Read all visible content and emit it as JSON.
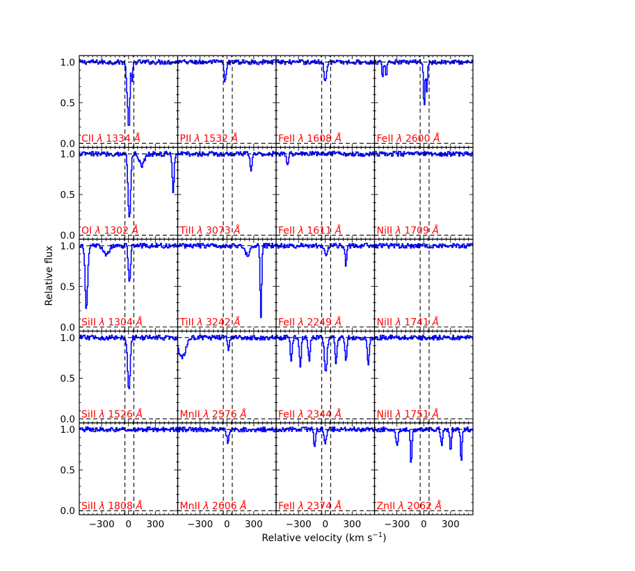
{
  "chart_data": {
    "type": "line",
    "ylabel": "Relative flux",
    "xlabel": "Relative velocity (km s$^{-1}$)",
    "xlabel_prefix": "Relative velocity (km s",
    "xlabel_sup": "−1",
    "xlabel_suffix": ")",
    "xlim": [
      -550,
      550
    ],
    "ylim": [
      -0.05,
      1.08
    ],
    "xticks": [
      -300,
      0,
      300
    ],
    "xtick_labels": [
      "−300",
      "0",
      "300"
    ],
    "yticks": [
      0.0,
      0.5,
      1.0
    ],
    "ytick_labels": [
      "0.0",
      "0.5",
      "1.0"
    ],
    "velocity_window": [
      -40,
      60
    ],
    "grid": false,
    "colors": {
      "spectrum": "#0000ff",
      "label": "#ff0000",
      "marker": "#000000"
    },
    "panel_grid": {
      "columns": 4,
      "rows": 5
    },
    "panels": [
      {
        "ion": "CII",
        "wavelength": "1334",
        "absorptions": [
          {
            "v": 5,
            "depth": 0.85,
            "width": 10,
            "style": "solid"
          },
          {
            "v": -15,
            "depth": 0.35,
            "width": 10,
            "style": "solid"
          },
          {
            "v": 40,
            "depth": 0.25,
            "width": 8,
            "style": "solid"
          }
        ]
      },
      {
        "ion": "PII",
        "wavelength": "1532",
        "absorptions": [
          {
            "v": -20,
            "depth": 0.25,
            "width": 12,
            "style": "solid"
          }
        ]
      },
      {
        "ion": "FeII",
        "wavelength": "1608",
        "absorptions": [
          {
            "v": 0,
            "depth": 0.25,
            "width": 12,
            "style": "solid"
          }
        ]
      },
      {
        "ion": "FeII",
        "wavelength": "2600",
        "absorptions": [
          {
            "v": 5,
            "depth": 0.55,
            "width": 8,
            "style": "solid"
          },
          {
            "v": 35,
            "depth": 0.35,
            "width": 8,
            "style": "solid"
          },
          {
            "v": -460,
            "depth": 0.2,
            "width": 8,
            "style": "solid"
          },
          {
            "v": -420,
            "depth": 0.18,
            "width": 8,
            "style": "solid"
          }
        ]
      },
      {
        "ion": "OI",
        "wavelength": "1302",
        "absorptions": [
          {
            "v": 10,
            "depth": 0.8,
            "width": 14,
            "style": "solid"
          },
          {
            "v": 150,
            "depth": 0.15,
            "width": 25,
            "style": "dotted"
          },
          {
            "v": 500,
            "depth": 0.45,
            "width": 10,
            "style": "dotted"
          }
        ]
      },
      {
        "ion": "TiII",
        "wavelength": "3073",
        "absorptions": [
          {
            "v": 270,
            "depth": 0.2,
            "width": 10,
            "style": "solid"
          }
        ]
      },
      {
        "ion": "FeII",
        "wavelength": "1611",
        "absorptions": [
          {
            "v": -420,
            "depth": 0.15,
            "width": 10,
            "style": "solid"
          }
        ]
      },
      {
        "ion": "NiII",
        "wavelength": "1709",
        "absorptions": []
      },
      {
        "ion": "SiII",
        "wavelength": "1304",
        "absorptions": [
          {
            "v": 10,
            "depth": 0.45,
            "width": 12,
            "style": "solid"
          },
          {
            "v": -470,
            "depth": 0.8,
            "width": 14,
            "style": "dotted"
          },
          {
            "v": -250,
            "depth": 0.12,
            "width": 30,
            "style": "dotted"
          }
        ]
      },
      {
        "ion": "TiII",
        "wavelength": "3242",
        "absorptions": [
          {
            "v": 380,
            "depth": 0.9,
            "width": 8,
            "style": "dotted"
          },
          {
            "v": 230,
            "depth": 0.12,
            "width": 25,
            "style": "dotted"
          }
        ]
      },
      {
        "ion": "FeII",
        "wavelength": "2249",
        "absorptions": [
          {
            "v": 10,
            "depth": 0.1,
            "width": 15,
            "style": "solid"
          },
          {
            "v": 230,
            "depth": 0.25,
            "width": 8,
            "style": "solid"
          }
        ]
      },
      {
        "ion": "NiII",
        "wavelength": "1741",
        "absorptions": []
      },
      {
        "ion": "SiII",
        "wavelength": "1526",
        "absorptions": [
          {
            "v": 5,
            "depth": 0.65,
            "width": 14,
            "style": "solid"
          }
        ]
      },
      {
        "ion": "MnII",
        "wavelength": "2576",
        "absorptions": [
          {
            "v": -500,
            "depth": 0.25,
            "width": 40,
            "style": "solid"
          },
          {
            "v": 20,
            "depth": 0.15,
            "width": 10,
            "style": "solid"
          }
        ]
      },
      {
        "ion": "FeII",
        "wavelength": "2344",
        "absorptions": [
          {
            "v": 5,
            "depth": 0.45,
            "width": 14,
            "style": "solid"
          },
          {
            "v": -380,
            "depth": 0.3,
            "width": 10,
            "style": "dotted"
          },
          {
            "v": -280,
            "depth": 0.35,
            "width": 10,
            "style": "dotted"
          },
          {
            "v": -180,
            "depth": 0.3,
            "width": 10,
            "style": "dotted"
          },
          {
            "v": 120,
            "depth": 0.3,
            "width": 10,
            "style": "dotted"
          },
          {
            "v": 230,
            "depth": 0.3,
            "width": 10,
            "style": "dotted"
          },
          {
            "v": 480,
            "depth": 0.35,
            "width": 10,
            "style": "dotted"
          }
        ]
      },
      {
        "ion": "NiII",
        "wavelength": "1751",
        "absorptions": []
      },
      {
        "ion": "SiII",
        "wavelength": "1808",
        "absorptions": []
      },
      {
        "ion": "MnII",
        "wavelength": "2606",
        "absorptions": [
          {
            "v": 10,
            "depth": 0.15,
            "width": 12,
            "style": "solid"
          }
        ]
      },
      {
        "ion": "FeII",
        "wavelength": "2374",
        "absorptions": [
          {
            "v": -120,
            "depth": 0.2,
            "width": 10,
            "style": "solid"
          },
          {
            "v": 0,
            "depth": 0.18,
            "width": 12,
            "style": "solid"
          }
        ]
      },
      {
        "ion": "ZnII",
        "wavelength": "2062",
        "absorptions": [
          {
            "v": -140,
            "depth": 0.45,
            "width": 8,
            "style": "dotted"
          },
          {
            "v": -300,
            "depth": 0.2,
            "width": 12,
            "style": "dotted"
          },
          {
            "v": 300,
            "depth": 0.3,
            "width": 8,
            "style": "solid"
          },
          {
            "v": 420,
            "depth": 0.4,
            "width": 8,
            "style": "solid"
          },
          {
            "v": 200,
            "depth": 0.2,
            "width": 10,
            "style": "solid"
          }
        ]
      }
    ]
  }
}
